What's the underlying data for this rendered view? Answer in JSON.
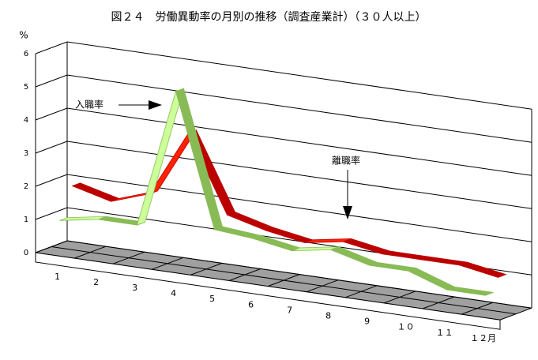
{
  "chart_data": {
    "type": "ribbon3d",
    "title": "図２４　労働異動率の月別の推移（調査産業計）（３０人以上）",
    "y_unit": "%",
    "categories": [
      "1",
      "2",
      "3",
      "4",
      "5",
      "6",
      "7",
      "8",
      "9",
      "１０",
      "１１",
      "１２月"
    ],
    "ylim": [
      0,
      6
    ],
    "yticks": [
      0,
      1,
      2,
      3,
      4,
      5,
      6
    ],
    "series": [
      {
        "name": "入職率",
        "color": "#ccff99",
        "values": [
          1.0,
          1.2,
          1.2,
          5.4,
          1.4,
          1.3,
          1.1,
          1.3,
          1.0,
          1.0,
          0.6,
          0.6
        ]
      },
      {
        "name": "離職率",
        "color": "#ff2200",
        "values": [
          1.9,
          1.6,
          2.0,
          4.0,
          1.7,
          1.4,
          1.2,
          1.4,
          1.2,
          1.2,
          1.2,
          1.0
        ]
      }
    ],
    "annotations": [
      "入職率",
      "離職率"
    ]
  }
}
